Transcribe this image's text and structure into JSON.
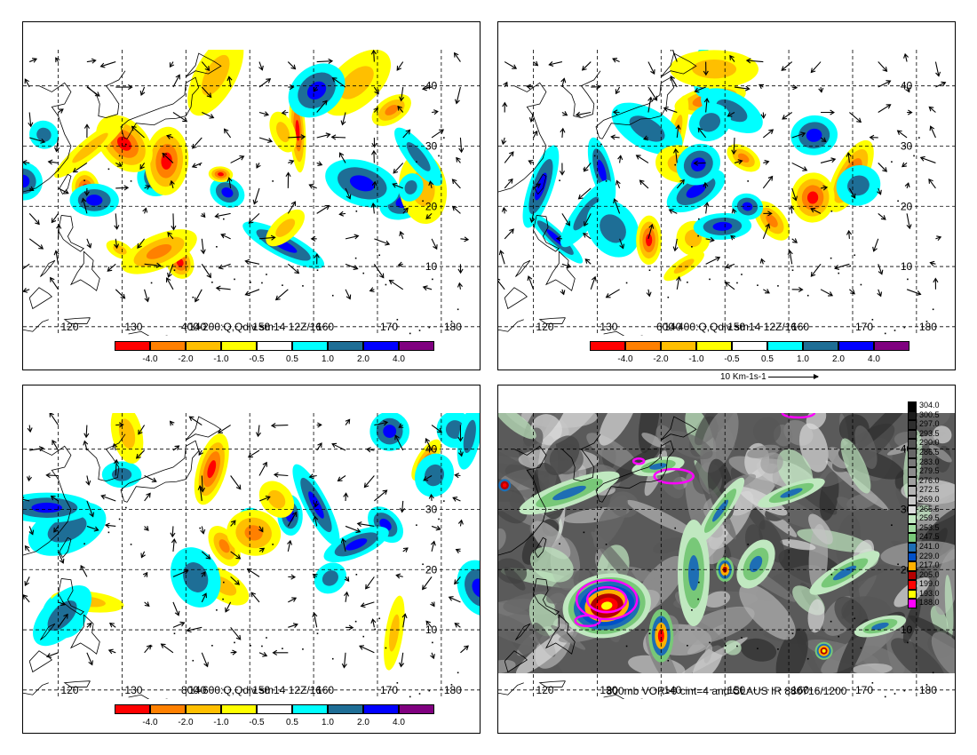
{
  "panels": [
    {
      "id": "p1",
      "caption": "400-200:Q,Qdiv sm14 12Z/16"
    },
    {
      "id": "p2",
      "caption": "600-400:Q,Qdiv sm14 12Z/16",
      "reference_arrow": "10 Km-1s-1"
    },
    {
      "id": "p3",
      "caption": "800-600:Q,Qdiv sm14 12Z/16"
    },
    {
      "id": "p4",
      "caption": "800mb VOR>0 cint=4 and CLAUS IR 880716/1200"
    }
  ],
  "map": {
    "lon_labels": [
      "120",
      "130",
      "140",
      "150",
      "160",
      "170",
      "180"
    ],
    "lat_labels": [
      "10",
      "20",
      "30",
      "40"
    ]
  },
  "divergence_colorbar": {
    "labels": [
      "-4.0",
      "-2.0",
      "-1.0",
      "-0.5",
      "0.5",
      "1.0",
      "2.0",
      "4.0"
    ],
    "colors": [
      "#ff0000",
      "#ff8000",
      "#ffbf00",
      "#ffff00",
      "#ffffff",
      "#00ffff",
      "#1e6e96",
      "#0000ff",
      "#800080"
    ]
  },
  "ir_colorbar": {
    "labels": [
      "304.0",
      "300.5",
      "297.0",
      "293.5",
      "290.0",
      "286.5",
      "283.0",
      "279.5",
      "276.0",
      "272.5",
      "269.0",
      "265.5",
      "259.5",
      "253.5",
      "247.5",
      "241.0",
      "229.0",
      "217.0",
      "205.0",
      "199.0",
      "193.0",
      "188.0"
    ],
    "colors": [
      "#000000",
      "#1a1a1a",
      "#2e2e2e",
      "#424242",
      "#555555",
      "#676767",
      "#797979",
      "#8c8c8c",
      "#a0a0a0",
      "#b4b4b4",
      "#c8c8c8",
      "#dcdcdc",
      "#c0e8c0",
      "#a0dca0",
      "#78c878",
      "#1e6eb4",
      "#0050c8",
      "#ffb000",
      "#b40000",
      "#ff0000",
      "#ffff00",
      "#ff00ff"
    ]
  },
  "colors": {
    "coast": "#000000",
    "grid": "#000000",
    "vorticity": "#ff00ff"
  }
}
